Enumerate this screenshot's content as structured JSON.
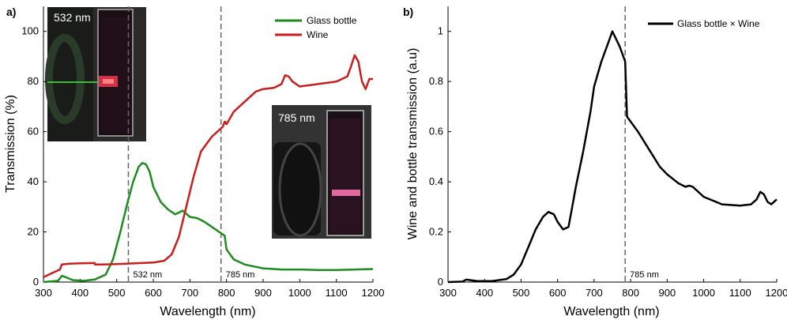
{
  "chart_data": [
    {
      "panel": "a)",
      "type": "line",
      "xlabel": "Wavelength (nm)",
      "ylabel": "Transmission (%)",
      "xlim": [
        300,
        1200
      ],
      "ylim": [
        0,
        110
      ],
      "xticks": [
        300,
        400,
        500,
        600,
        700,
        800,
        900,
        1000,
        1100,
        1200
      ],
      "yticks": [
        0,
        20,
        40,
        60,
        80,
        100
      ],
      "legend_position": "top-right",
      "series": [
        {
          "name": "Glass bottle",
          "color": "#1e8c1e",
          "x": [
            300,
            340,
            350,
            360,
            380,
            410,
            440,
            470,
            490,
            510,
            530,
            545,
            560,
            570,
            580,
            590,
            600,
            620,
            640,
            660,
            680,
            700,
            720,
            740,
            760,
            780,
            795,
            800,
            820,
            850,
            900,
            950,
            1000,
            1050,
            1100,
            1150,
            1200
          ],
          "y": [
            0,
            0.5,
            2.5,
            2,
            0.8,
            0.5,
            1,
            3,
            9,
            20,
            32,
            40,
            46,
            47.5,
            47,
            44,
            38,
            32,
            29,
            27,
            28.5,
            26,
            25.5,
            24,
            22,
            20,
            18.5,
            13,
            9,
            7,
            5.5,
            5,
            5,
            4.8,
            4.8,
            5,
            5.2
          ]
        },
        {
          "name": "Wine",
          "color": "#c81e1e",
          "x": [
            300,
            330,
            345,
            350,
            370,
            400,
            440,
            441,
            460,
            500,
            550,
            600,
            630,
            650,
            670,
            690,
            710,
            730,
            760,
            790,
            795,
            800,
            820,
            850,
            880,
            900,
            930,
            950,
            960,
            970,
            980,
            1000,
            1050,
            1100,
            1130,
            1140,
            1150,
            1160,
            1170,
            1180,
            1190,
            1200
          ],
          "y": [
            2,
            4,
            5,
            7,
            7.3,
            7.5,
            7.6,
            7,
            7,
            7.2,
            7.5,
            7.8,
            8.5,
            11,
            18,
            30,
            42,
            52,
            58,
            62,
            64,
            63,
            68,
            72,
            76,
            77,
            77.5,
            79,
            82.5,
            82,
            80,
            78,
            79,
            80,
            82,
            86,
            90.5,
            88,
            80,
            77,
            81,
            81
          ]
        }
      ],
      "vlines": [
        {
          "x": 532,
          "label": "532 nm"
        },
        {
          "x": 785,
          "label": "785 nm"
        }
      ],
      "insets": [
        {
          "label": "532 nm",
          "position": "top-left"
        },
        {
          "label": "785 nm",
          "position": "middle-right"
        }
      ]
    },
    {
      "panel": "b)",
      "type": "line",
      "xlabel": "Wavelength (nm)",
      "ylabel": "Wine and bottle transmission (a.u)",
      "xlim": [
        300,
        1200
      ],
      "ylim": [
        0,
        1.1
      ],
      "xticks": [
        300,
        400,
        500,
        600,
        700,
        800,
        900,
        1000,
        1100,
        1200
      ],
      "yticks": [
        0,
        0.2,
        0.4,
        0.6,
        0.8,
        1
      ],
      "legend_position": "top-right",
      "series": [
        {
          "name": "Glass bottle × Wine",
          "color": "#000000",
          "x": [
            300,
            340,
            350,
            360,
            380,
            420,
            460,
            480,
            500,
            520,
            540,
            560,
            575,
            590,
            600,
            615,
            630,
            640,
            650,
            670,
            690,
            700,
            720,
            740,
            750,
            760,
            770,
            780,
            785,
            790,
            800,
            820,
            850,
            880,
            900,
            930,
            950,
            960,
            970,
            1000,
            1050,
            1100,
            1130,
            1145,
            1155,
            1165,
            1175,
            1185,
            1200
          ],
          "y": [
            0,
            0.002,
            0.01,
            0.008,
            0.004,
            0.004,
            0.012,
            0.03,
            0.07,
            0.14,
            0.21,
            0.26,
            0.28,
            0.27,
            0.24,
            0.21,
            0.22,
            0.3,
            0.38,
            0.52,
            0.68,
            0.78,
            0.88,
            0.96,
            1.0,
            0.97,
            0.94,
            0.9,
            0.88,
            0.66,
            0.64,
            0.6,
            0.53,
            0.46,
            0.43,
            0.395,
            0.38,
            0.385,
            0.38,
            0.34,
            0.31,
            0.305,
            0.31,
            0.33,
            0.36,
            0.35,
            0.32,
            0.31,
            0.33
          ]
        }
      ],
      "vlines": [
        {
          "x": 785,
          "label": "785 nm"
        }
      ]
    }
  ]
}
